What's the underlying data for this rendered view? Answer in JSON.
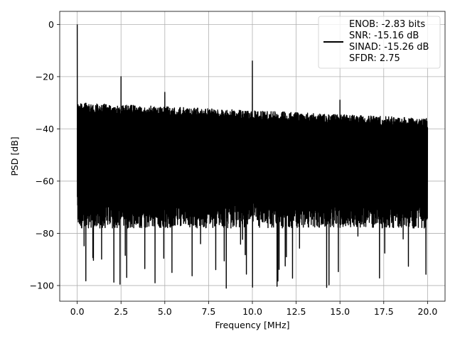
{
  "chart_data": {
    "type": "line",
    "xlabel": "Frequency [MHz]",
    "ylabel": "PSD [dB]",
    "xlim": [
      -1.0,
      21.0
    ],
    "ylim": [
      -106.0,
      5.0
    ],
    "xticks": [
      0.0,
      2.5,
      5.0,
      7.5,
      10.0,
      12.5,
      15.0,
      17.5,
      20.0
    ],
    "xtick_labels": [
      "0.0",
      "2.5",
      "5.0",
      "7.5",
      "10.0",
      "12.5",
      "15.0",
      "17.5",
      "20.0"
    ],
    "yticks": [
      0,
      -20,
      -40,
      -60,
      -80,
      -100
    ],
    "ytick_labels": [
      "0",
      "−20",
      "−40",
      "−60",
      "−80",
      "−100"
    ],
    "grid": true,
    "legend_position": "top-right",
    "line_color": "#000000",
    "legend_lines": [
      "ENOB: -2.83 bits",
      "SNR: -15.16 dB",
      "SINAD: -15.26 dB",
      "SFDR: 2.75"
    ],
    "series": [
      {
        "noise_band": {
          "x_range": [
            0.0,
            20.0
          ],
          "upper_start": -30,
          "upper_end": -36,
          "lower_typical": -73,
          "lower_min": -101
        },
        "spikes": [
          {
            "x": 0.0,
            "y": 0
          },
          {
            "x": 2.5,
            "y": -20
          },
          {
            "x": 5.0,
            "y": -26
          },
          {
            "x": 10.0,
            "y": -14
          },
          {
            "x": 15.0,
            "y": -29
          }
        ]
      }
    ]
  }
}
